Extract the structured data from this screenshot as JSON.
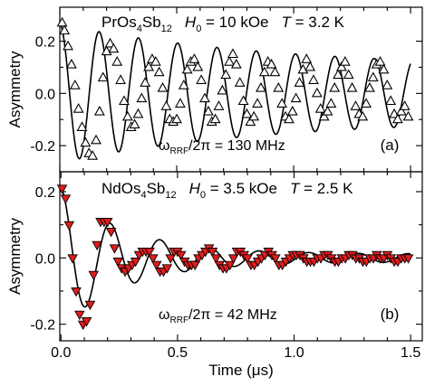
{
  "chart_data": [
    {
      "type": "scatter",
      "panel_label": "(a)",
      "material": {
        "base": "PrOs",
        "sub1": "4",
        "mid": "Sb",
        "sub2": "12"
      },
      "condition_field": {
        "sym": "H",
        "sub": "0",
        "value": " = 10 kOe"
      },
      "condition_temp": {
        "sym": "T",
        "value": " = 3.2 K"
      },
      "freq_label": {
        "omega": "ω",
        "sub": "RRF",
        "value": "/2π = 130 MHz"
      },
      "ylabel": "Asymmetry",
      "xlabel": "",
      "xlim": [
        0,
        1.55
      ],
      "ylim": [
        -0.3,
        0.33
      ],
      "yticks": [
        0.2,
        0.0,
        -0.2
      ],
      "ytick_labels": [
        "0.2",
        "0.0",
        "-0.2"
      ],
      "xticks": [
        0,
        0.5,
        1.0,
        1.5
      ],
      "xtick_labels": [],
      "marker": "open-triangle-up",
      "marker_color": "#000000",
      "series": [
        {
          "x": [
            0.01,
            0.02,
            0.035,
            0.05,
            0.065,
            0.08,
            0.095,
            0.11,
            0.125,
            0.14,
            0.155,
            0.17,
            0.185,
            0.2,
            0.215,
            0.23,
            0.245,
            0.26,
            0.275,
            0.29,
            0.305,
            0.32,
            0.335,
            0.35,
            0.365,
            0.38,
            0.395,
            0.41,
            0.425,
            0.44,
            0.455,
            0.47,
            0.485,
            0.5,
            0.515,
            0.53,
            0.545,
            0.56,
            0.575,
            0.59,
            0.605,
            0.62,
            0.635,
            0.65,
            0.665,
            0.68,
            0.695,
            0.71,
            0.725,
            0.74,
            0.755,
            0.77,
            0.785,
            0.8,
            0.815,
            0.83,
            0.845,
            0.86,
            0.875,
            0.89,
            0.905,
            0.92,
            0.935,
            0.95,
            0.965,
            0.98,
            0.995,
            1.01,
            1.025,
            1.04,
            1.055,
            1.07,
            1.085,
            1.1,
            1.115,
            1.13,
            1.145,
            1.16,
            1.175,
            1.19,
            1.205,
            1.22,
            1.235,
            1.25,
            1.265,
            1.28,
            1.295,
            1.31,
            1.325,
            1.34,
            1.355,
            1.37,
            1.385,
            1.4,
            1.415,
            1.43,
            1.445,
            1.46,
            1.475,
            1.49
          ],
          "y": [
            0.27,
            0.24,
            0.18,
            0.11,
            0.03,
            -0.06,
            -0.13,
            -0.19,
            -0.23,
            -0.24,
            -0.18,
            -0.07,
            0.06,
            0.16,
            0.19,
            0.17,
            0.12,
            0.05,
            -0.03,
            -0.09,
            -0.13,
            -0.12,
            -0.08,
            -0.02,
            0.04,
            0.1,
            0.13,
            0.12,
            0.08,
            0.02,
            -0.05,
            -0.1,
            -0.11,
            -0.1,
            -0.04,
            0.03,
            0.09,
            0.12,
            0.13,
            0.1,
            0.05,
            -0.02,
            -0.07,
            -0.11,
            -0.1,
            -0.05,
            0.01,
            0.07,
            0.12,
            0.15,
            0.11,
            0.04,
            -0.03,
            -0.08,
            -0.11,
            -0.09,
            -0.04,
            0.02,
            0.08,
            0.12,
            0.11,
            0.08,
            0.02,
            -0.04,
            -0.09,
            -0.1,
            -0.07,
            -0.02,
            0.04,
            0.09,
            0.13,
            0.1,
            0.05,
            0.0,
            -0.06,
            -0.09,
            -0.07,
            -0.04,
            0.02,
            0.07,
            0.1,
            0.12,
            0.07,
            0.02,
            -0.05,
            -0.08,
            -0.09,
            -0.04,
            0.02,
            0.06,
            0.11,
            0.12,
            0.09,
            0.03,
            -0.03,
            -0.08,
            -0.1,
            -0.07,
            -0.05,
            -0.09
          ]
        }
      ],
      "fit": {
        "model": "damped-cosine",
        "amplitude": 0.265,
        "frequency_per_us": 5.95,
        "relaxation_per_us": 1.1,
        "floor_amplitude": 0.095,
        "color": "#000000"
      }
    },
    {
      "type": "scatter",
      "panel_label": "(b)",
      "material": {
        "base": "NdOs",
        "sub1": "4",
        "mid": "Sb",
        "sub2": "12"
      },
      "condition_field": {
        "sym": "H",
        "sub": "0",
        "value": " = 3.5 kOe"
      },
      "condition_temp": {
        "sym": "T",
        "value": " = 2.5 K"
      },
      "freq_label": {
        "omega": "ω",
        "sub": "RRF",
        "value": "/2π = 42 MHz"
      },
      "ylabel": "Asymmetry",
      "xlabel": "Time (μs)",
      "xlim": [
        -0.005,
        1.55
      ],
      "ylim": [
        -0.25,
        0.26
      ],
      "yticks": [
        0.2,
        0.0,
        -0.2
      ],
      "ytick_labels": [
        "0.2",
        "0.0",
        "-0.2"
      ],
      "xticks": [
        0.0,
        0.5,
        1.0,
        1.5
      ],
      "xtick_labels": [
        "0.0",
        "0.5",
        "1.0",
        "1.5"
      ],
      "marker": "filled-triangle-down",
      "marker_color": "#e11c1c",
      "series": [
        {
          "x": [
            0.005,
            0.02,
            0.035,
            0.05,
            0.065,
            0.08,
            0.095,
            0.11,
            0.125,
            0.14,
            0.155,
            0.17,
            0.185,
            0.2,
            0.215,
            0.23,
            0.245,
            0.26,
            0.275,
            0.29,
            0.305,
            0.32,
            0.335,
            0.35,
            0.365,
            0.38,
            0.395,
            0.41,
            0.425,
            0.44,
            0.455,
            0.47,
            0.485,
            0.5,
            0.515,
            0.53,
            0.545,
            0.56,
            0.575,
            0.59,
            0.605,
            0.62,
            0.635,
            0.65,
            0.665,
            0.68,
            0.695,
            0.71,
            0.725,
            0.74,
            0.755,
            0.77,
            0.785,
            0.8,
            0.815,
            0.83,
            0.845,
            0.86,
            0.875,
            0.89,
            0.905,
            0.92,
            0.935,
            0.95,
            0.965,
            0.98,
            0.995,
            1.01,
            1.025,
            1.04,
            1.055,
            1.07,
            1.085,
            1.1,
            1.115,
            1.13,
            1.145,
            1.16,
            1.175,
            1.19,
            1.205,
            1.22,
            1.235,
            1.25,
            1.265,
            1.28,
            1.295,
            1.31,
            1.325,
            1.34,
            1.355,
            1.37,
            1.385,
            1.4,
            1.415,
            1.43,
            1.445,
            1.46,
            1.475,
            1.49
          ],
          "y": [
            0.21,
            0.18,
            0.1,
            0.0,
            -0.1,
            -0.17,
            -0.2,
            -0.19,
            -0.14,
            -0.05,
            0.04,
            0.11,
            0.11,
            0.11,
            0.08,
            0.03,
            -0.01,
            -0.03,
            -0.04,
            -0.03,
            -0.02,
            -0.01,
            0.01,
            0.02,
            0.02,
            0.02,
            0.0,
            -0.02,
            -0.04,
            -0.04,
            -0.03,
            0.0,
            0.02,
            0.02,
            0.01,
            -0.01,
            -0.02,
            -0.02,
            -0.02,
            0.0,
            0.01,
            0.02,
            0.03,
            0.02,
            0.0,
            -0.02,
            -0.03,
            -0.03,
            -0.02,
            0.0,
            0.02,
            0.02,
            0.01,
            0.0,
            -0.02,
            -0.02,
            -0.01,
            0.0,
            0.01,
            0.02,
            0.01,
            0.0,
            -0.02,
            -0.02,
            -0.01,
            0.0,
            0.01,
            0.01,
            0.01,
            0.0,
            -0.01,
            -0.01,
            -0.01,
            0.0,
            0.0,
            0.01,
            0.01,
            0.0,
            -0.01,
            -0.01,
            0.0,
            0.0,
            0.01,
            0.01,
            0.0,
            0.0,
            -0.01,
            -0.01,
            0.0,
            0.0,
            0.01,
            0.0,
            0.0,
            0.01,
            0.0,
            -0.01,
            -0.01,
            0.0,
            0.0,
            0.0
          ]
        }
      ],
      "fit": {
        "model": "damped-cosine",
        "amplitude": 0.21,
        "frequency_per_us": 4.7,
        "relaxation_per_us": 3.6,
        "floor_amplitude": 0.012,
        "color": "#000000"
      }
    }
  ]
}
